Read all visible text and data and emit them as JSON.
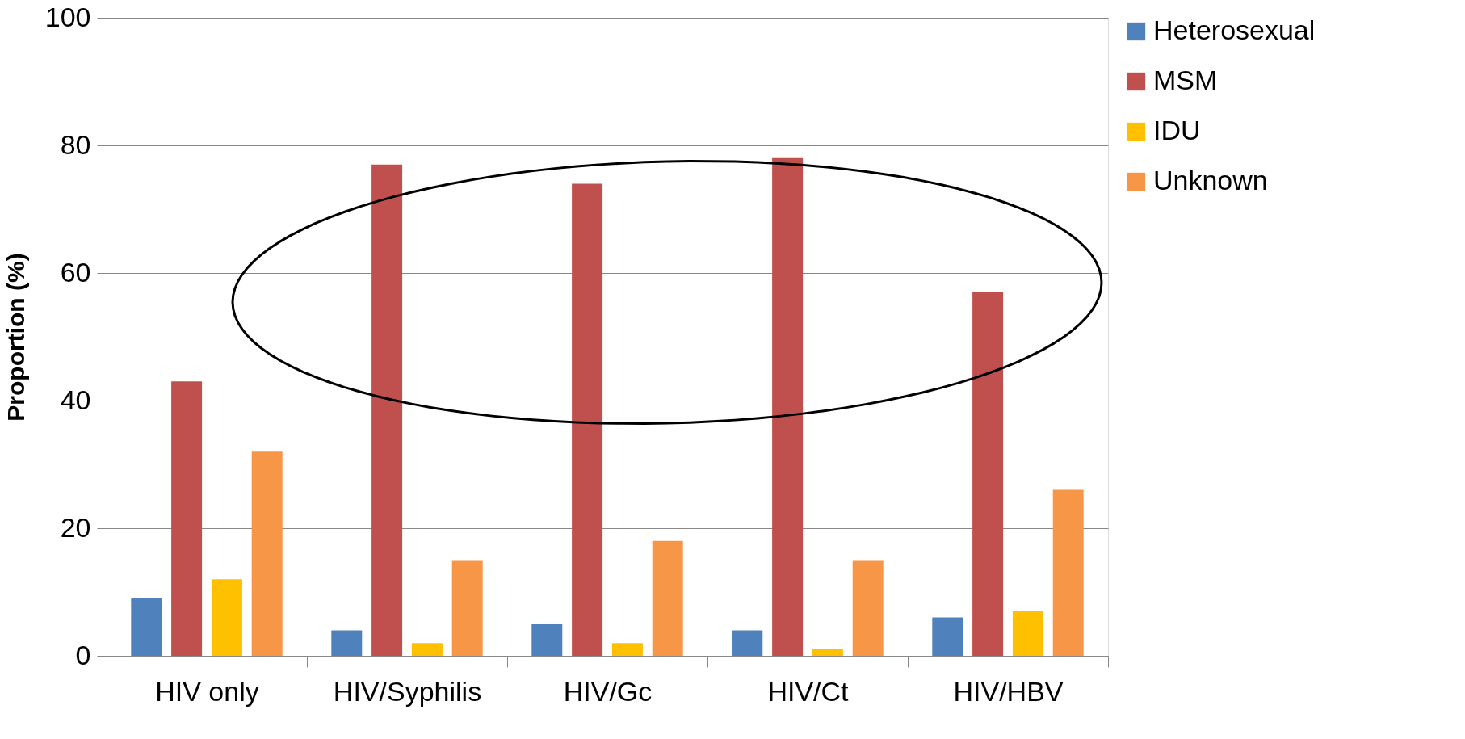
{
  "chart_data": {
    "type": "bar",
    "ylabel": "Proportion (%)",
    "categories": [
      "HIV only",
      "HIV/Syphilis",
      "HIV/Gc",
      "HIV/Ct",
      "HIV/HBV"
    ],
    "series": [
      {
        "name": "Heterosexual",
        "color": "#4f81bd",
        "values": [
          9,
          4,
          5,
          4,
          6
        ]
      },
      {
        "name": "MSM",
        "color": "#c0504d",
        "values": [
          43,
          77,
          74,
          78,
          57
        ]
      },
      {
        "name": "IDU",
        "color": "#ffc000",
        "values": [
          12,
          2,
          2,
          1,
          7
        ]
      },
      {
        "name": "Unknown",
        "color": "#f79646",
        "values": [
          32,
          15,
          18,
          15,
          26
        ]
      }
    ],
    "ylim": [
      0,
      100
    ],
    "yticks": [
      0,
      20,
      40,
      60,
      80,
      100
    ],
    "grid": "y",
    "legend": "right"
  }
}
